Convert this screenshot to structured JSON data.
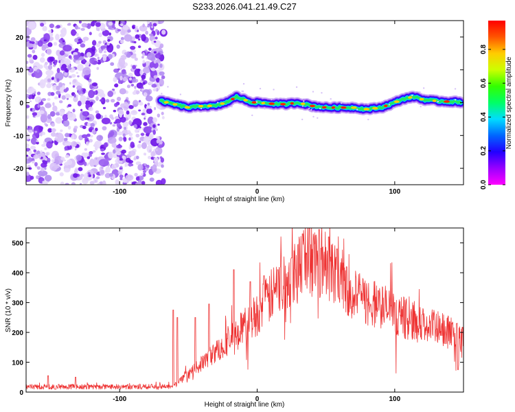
{
  "chart_data": [
    {
      "type": "heatmap",
      "title": "S233.2026.041.21.49.C27",
      "xlabel": "Height of straight line (km)",
      "ylabel": "Frequency (Hz)",
      "xlim": [
        -168,
        150
      ],
      "ylim": [
        -25,
        25
      ],
      "xticks": [
        -100,
        0,
        100
      ],
      "yticks": [
        -20,
        -10,
        0,
        10,
        20
      ],
      "colorbar": {
        "label": "Normalized spectral amplitude",
        "range": [
          0,
          0.97
        ],
        "ticks": [
          "0.0",
          "0.2",
          "0.4",
          "0.6",
          "0.8"
        ],
        "colormap": "rainbow"
      },
      "noise_region": {
        "x_range": [
          -168,
          -68
        ],
        "description_color": "#7b2bf0"
      },
      "signal_line": {
        "x": [
          -70,
          -60,
          -50,
          -40,
          -30,
          -20,
          -15,
          -10,
          -5,
          0,
          10,
          20,
          30,
          40,
          50,
          60,
          70,
          80,
          90,
          100,
          105,
          110,
          115,
          120,
          130,
          140,
          148
        ],
        "freq": [
          0.5,
          -0.5,
          -1.5,
          -1,
          -1,
          0.5,
          1.8,
          1,
          0.2,
          0,
          -0.3,
          -0.5,
          0,
          -1,
          -1.5,
          -1.5,
          -1.5,
          -2,
          -1.5,
          0,
          1,
          1.5,
          1.8,
          1,
          0.5,
          0.3,
          0.2
        ]
      }
    },
    {
      "type": "line",
      "xlabel": "Height of straight line (km)",
      "ylabel": "SNR (10 * v/v)",
      "xlim": [
        -168,
        150
      ],
      "ylim": [
        0,
        550
      ],
      "xticks": [
        -100,
        0,
        100
      ],
      "yticks": [
        0,
        100,
        200,
        300,
        400,
        500
      ],
      "series_color": "#ee3333",
      "envelope": {
        "x": [
          -168,
          -65,
          -60,
          -50,
          -40,
          -30,
          -20,
          -10,
          0,
          10,
          20,
          30,
          40,
          50,
          60,
          70,
          80,
          90,
          100,
          110,
          120,
          130,
          140,
          150
        ],
        "y": [
          15,
          15,
          25,
          60,
          100,
          140,
          180,
          225,
          270,
          330,
          390,
          440,
          455,
          450,
          400,
          330,
          310,
          300,
          270,
          250,
          230,
          220,
          205,
          180
        ]
      },
      "spikes": [
        [
          -152,
          55
        ],
        [
          -132,
          50
        ],
        [
          -61,
          275
        ],
        [
          -58,
          250
        ],
        [
          -45,
          250
        ],
        [
          -35,
          295
        ],
        [
          -17,
          410
        ],
        [
          -5,
          370
        ],
        [
          5,
          390
        ],
        [
          15,
          410
        ],
        [
          25,
          450
        ],
        [
          33,
          530
        ],
        [
          38,
          550
        ],
        [
          45,
          545
        ],
        [
          52,
          520
        ],
        [
          58,
          480
        ],
        [
          65,
          420
        ],
        [
          75,
          360
        ],
        [
          88,
          340
        ],
        [
          100,
          300
        ],
        [
          120,
          260
        ],
        [
          145,
          230
        ],
        [
          146,
          75
        ]
      ]
    }
  ]
}
